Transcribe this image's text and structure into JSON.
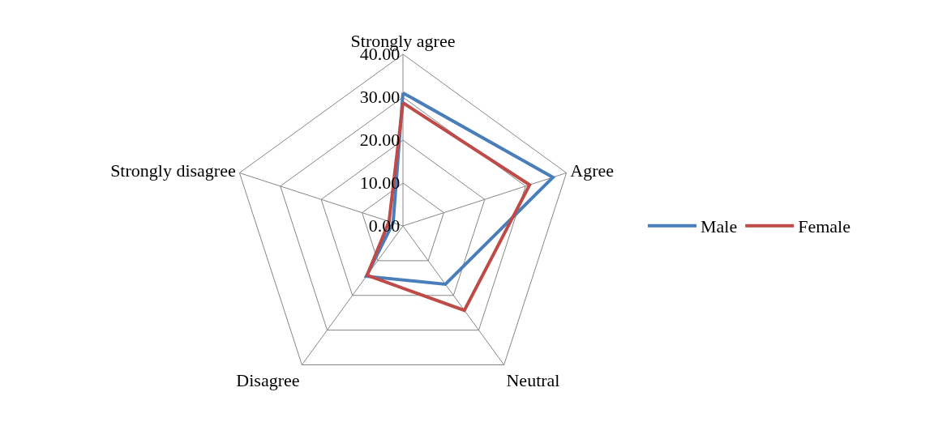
{
  "chart_data": {
    "type": "radar",
    "categories": [
      "Strongly agree",
      "Agree",
      "Neutral",
      "Disagree",
      "Strongly disagree"
    ],
    "series": [
      {
        "name": "Male",
        "color": "#4a7ebb",
        "values": [
          31,
          36.7,
          16.8,
          14.5,
          2.4
        ]
      },
      {
        "name": "Female",
        "color": "#be4b48",
        "values": [
          28.7,
          31,
          24.3,
          14.2,
          3.4
        ]
      }
    ],
    "ylim": [
      0,
      40
    ],
    "yticks": [
      {
        "value": 0,
        "label": "0.00"
      },
      {
        "value": 10,
        "label": "10.00"
      },
      {
        "value": 20,
        "label": "20.00"
      },
      {
        "value": 30,
        "label": "30.00"
      },
      {
        "value": 40,
        "label": "40.00"
      }
    ],
    "grid": true,
    "legend": "right",
    "marker": "none",
    "line_style": "solid"
  }
}
